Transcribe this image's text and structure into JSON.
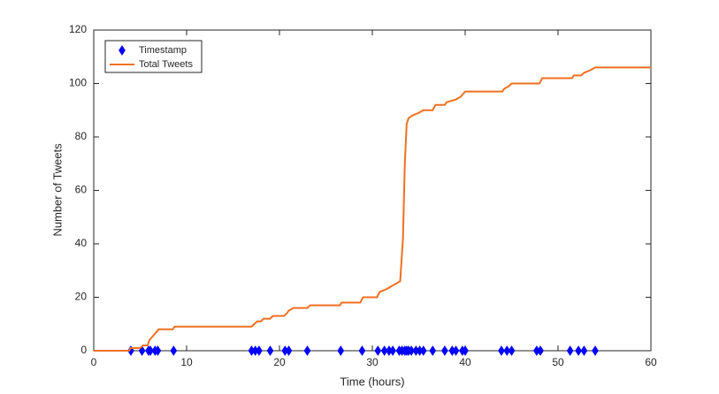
{
  "chart_data": {
    "type": "line",
    "xlabel": "Time (hours)",
    "ylabel": "Number of Tweets",
    "xlim": [
      0,
      60
    ],
    "xticks": [
      0,
      10,
      20,
      30,
      40,
      50,
      60
    ],
    "ylim": [
      0,
      120
    ],
    "yticks": [
      0,
      20,
      40,
      60,
      80,
      100,
      120
    ],
    "legend": "upper left",
    "series": [
      {
        "name": "Timestamp",
        "type": "scatter",
        "marker": "diamond",
        "color": "#0000ff",
        "x": [
          4.0,
          5.2,
          5.9,
          6.1,
          6.6,
          6.9,
          8.6,
          17.0,
          17.4,
          17.8,
          19.0,
          20.6,
          21.0,
          23.0,
          26.6,
          28.9,
          30.6,
          31.3,
          31.8,
          32.2,
          32.9,
          33.2,
          33.5,
          33.7,
          33.9,
          34.2,
          34.7,
          35.1,
          35.5,
          36.5,
          37.8,
          38.6,
          39.0,
          39.7,
          40.0,
          43.9,
          44.5,
          45.0,
          47.7,
          48.1,
          51.3,
          52.2,
          52.8,
          54.0
        ],
        "values": [
          0,
          0,
          0,
          0,
          0,
          0,
          0,
          0,
          0,
          0,
          0,
          0,
          0,
          0,
          0,
          0,
          0,
          0,
          0,
          0,
          0,
          0,
          0,
          0,
          0,
          0,
          0,
          0,
          0,
          0,
          0,
          0,
          0,
          0,
          0,
          0,
          0,
          0,
          0,
          0,
          0,
          0,
          0,
          0
        ]
      },
      {
        "name": "Total Tweets",
        "type": "line",
        "color": "#f07020",
        "x": [
          0,
          3.8,
          4.0,
          5.0,
          5.3,
          5.8,
          6.0,
          6.5,
          7.0,
          8.5,
          8.7,
          17.0,
          17.3,
          17.6,
          18.0,
          18.3,
          19.0,
          19.3,
          20.5,
          20.8,
          21.0,
          21.5,
          23.0,
          23.3,
          26.5,
          26.7,
          28.7,
          29.0,
          30.5,
          30.8,
          31.5,
          32.0,
          32.5,
          33.0,
          33.3,
          33.5,
          33.7,
          33.9,
          34.3,
          35.0,
          35.5,
          36.5,
          36.8,
          37.8,
          38.0,
          39.0,
          39.5,
          40.0,
          44.0,
          44.2,
          44.7,
          45.0,
          48.0,
          48.3,
          51.5,
          51.7,
          52.5,
          52.8,
          53.5,
          54.0,
          60.0
        ],
        "values": [
          0,
          0,
          1,
          1,
          2,
          2,
          4,
          6,
          8,
          8,
          9,
          9,
          10,
          11,
          11,
          12,
          12,
          13,
          13,
          14,
          15,
          16,
          16,
          17,
          17,
          18,
          18,
          20,
          20,
          22,
          23,
          24,
          25,
          26,
          42,
          70,
          85,
          87,
          88,
          89,
          90,
          90,
          92,
          92,
          93,
          94,
          95,
          97,
          97,
          98,
          99,
          100,
          100,
          102,
          102,
          103,
          103,
          104,
          105,
          106,
          106
        ]
      }
    ]
  }
}
